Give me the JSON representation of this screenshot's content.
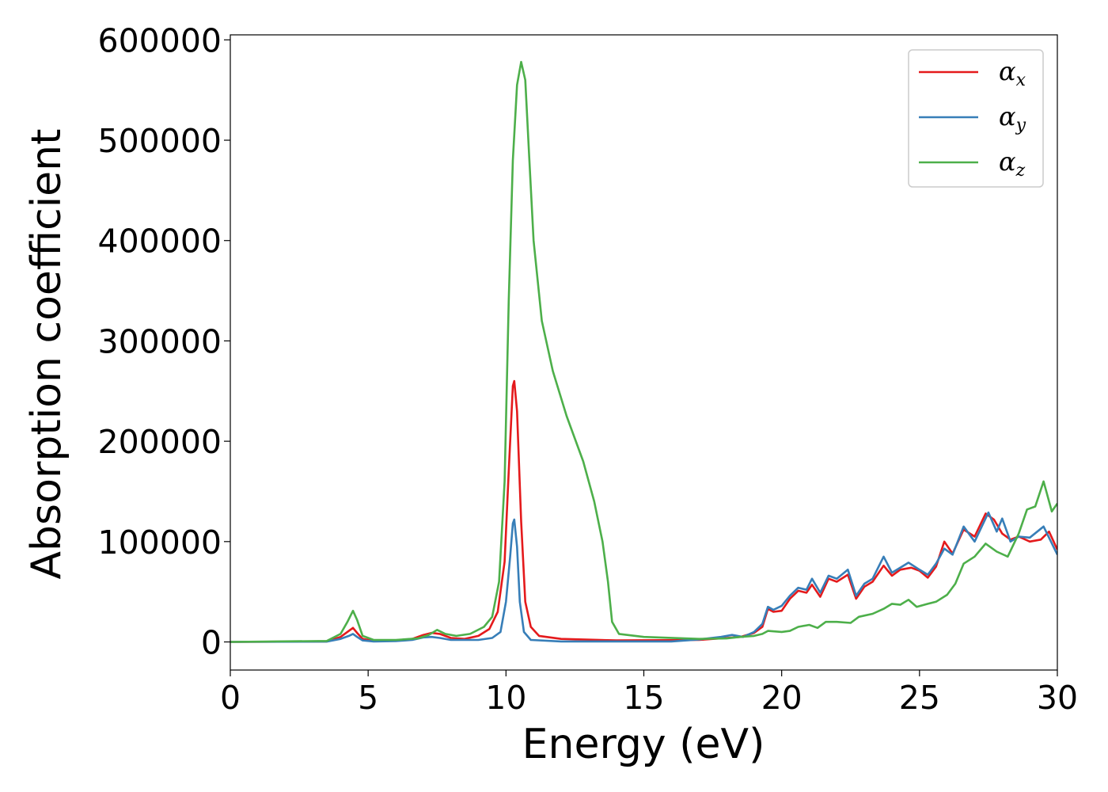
{
  "chart_data": {
    "type": "line",
    "xlabel": "Energy (eV)",
    "ylabel": "Absorption coefficient",
    "xlim": [
      0,
      30
    ],
    "ylim": [
      -28000,
      605000
    ],
    "xticks": [
      0,
      5,
      10,
      15,
      20,
      25,
      30
    ],
    "yticks": [
      0,
      100000,
      200000,
      300000,
      400000,
      500000,
      600000
    ],
    "grid": false,
    "legend_position": "top-right",
    "series": [
      {
        "name": "αx",
        "symbol": "α",
        "subscript": "x",
        "color": "#e41a1c",
        "points": [
          [
            0,
            0
          ],
          [
            3.5,
            500
          ],
          [
            4.0,
            5000
          ],
          [
            4.3,
            11000
          ],
          [
            4.45,
            14000
          ],
          [
            4.6,
            9000
          ],
          [
            4.8,
            3000
          ],
          [
            5.2,
            1000
          ],
          [
            6.0,
            1500
          ],
          [
            6.6,
            3000
          ],
          [
            7.0,
            7000
          ],
          [
            7.3,
            9000
          ],
          [
            7.6,
            8000
          ],
          [
            8.0,
            4000
          ],
          [
            8.5,
            3000
          ],
          [
            9.0,
            6000
          ],
          [
            9.4,
            13000
          ],
          [
            9.7,
            30000
          ],
          [
            9.95,
            80000
          ],
          [
            10.1,
            170000
          ],
          [
            10.25,
            255000
          ],
          [
            10.3,
            260000
          ],
          [
            10.4,
            230000
          ],
          [
            10.55,
            120000
          ],
          [
            10.7,
            40000
          ],
          [
            10.9,
            15000
          ],
          [
            11.2,
            6000
          ],
          [
            12,
            3000
          ],
          [
            14,
            1500
          ],
          [
            17,
            2000
          ],
          [
            18,
            4000
          ],
          [
            18.5,
            5000
          ],
          [
            19,
            9000
          ],
          [
            19.3,
            15000
          ],
          [
            19.5,
            33000
          ],
          [
            19.7,
            30000
          ],
          [
            20.0,
            31000
          ],
          [
            20.3,
            43000
          ],
          [
            20.6,
            51000
          ],
          [
            20.9,
            49000
          ],
          [
            21.1,
            57000
          ],
          [
            21.4,
            45000
          ],
          [
            21.7,
            63000
          ],
          [
            22.0,
            60000
          ],
          [
            22.4,
            67000
          ],
          [
            22.7,
            43000
          ],
          [
            23.0,
            55000
          ],
          [
            23.3,
            60000
          ],
          [
            23.7,
            76000
          ],
          [
            24.0,
            66000
          ],
          [
            24.3,
            72000
          ],
          [
            24.7,
            74000
          ],
          [
            25.0,
            71000
          ],
          [
            25.3,
            64000
          ],
          [
            25.6,
            75000
          ],
          [
            25.9,
            100000
          ],
          [
            26.2,
            88000
          ],
          [
            26.6,
            112000
          ],
          [
            27.0,
            105000
          ],
          [
            27.4,
            128000
          ],
          [
            27.7,
            122000
          ],
          [
            28.0,
            108000
          ],
          [
            28.3,
            102000
          ],
          [
            28.6,
            105000
          ],
          [
            29.0,
            100000
          ],
          [
            29.4,
            102000
          ],
          [
            29.7,
            110000
          ],
          [
            30.0,
            92000
          ]
        ]
      },
      {
        "name": "αy",
        "symbol": "α",
        "subscript": "y",
        "color": "#377eb8",
        "points": [
          [
            0,
            0
          ],
          [
            3.5,
            300
          ],
          [
            4.0,
            3000
          ],
          [
            4.3,
            6000
          ],
          [
            4.45,
            8000
          ],
          [
            4.6,
            5000
          ],
          [
            4.8,
            1500
          ],
          [
            5.2,
            500
          ],
          [
            6.0,
            800
          ],
          [
            6.6,
            2000
          ],
          [
            7.0,
            4500
          ],
          [
            7.3,
            5000
          ],
          [
            7.6,
            4000
          ],
          [
            8.0,
            2000
          ],
          [
            9.0,
            2000
          ],
          [
            9.5,
            4000
          ],
          [
            9.8,
            10000
          ],
          [
            10.0,
            40000
          ],
          [
            10.15,
            85000
          ],
          [
            10.25,
            118000
          ],
          [
            10.3,
            122000
          ],
          [
            10.4,
            95000
          ],
          [
            10.5,
            40000
          ],
          [
            10.65,
            10000
          ],
          [
            10.9,
            2000
          ],
          [
            12,
            500
          ],
          [
            16,
            500
          ],
          [
            17,
            2500
          ],
          [
            17.8,
            5000
          ],
          [
            18.2,
            7000
          ],
          [
            18.6,
            5000
          ],
          [
            19,
            10000
          ],
          [
            19.3,
            18000
          ],
          [
            19.5,
            35000
          ],
          [
            19.7,
            32000
          ],
          [
            20.0,
            36000
          ],
          [
            20.3,
            46000
          ],
          [
            20.6,
            54000
          ],
          [
            20.9,
            52000
          ],
          [
            21.1,
            63000
          ],
          [
            21.4,
            49000
          ],
          [
            21.7,
            66000
          ],
          [
            22.0,
            63000
          ],
          [
            22.4,
            72000
          ],
          [
            22.7,
            46000
          ],
          [
            23.0,
            58000
          ],
          [
            23.3,
            63000
          ],
          [
            23.7,
            85000
          ],
          [
            24.0,
            69000
          ],
          [
            24.3,
            74000
          ],
          [
            24.6,
            79000
          ],
          [
            25.0,
            72000
          ],
          [
            25.3,
            67000
          ],
          [
            25.6,
            78000
          ],
          [
            25.9,
            93000
          ],
          [
            26.2,
            87000
          ],
          [
            26.6,
            115000
          ],
          [
            27.0,
            100000
          ],
          [
            27.5,
            129000
          ],
          [
            27.8,
            110000
          ],
          [
            28.0,
            123000
          ],
          [
            28.3,
            100000
          ],
          [
            28.6,
            105000
          ],
          [
            29.0,
            104000
          ],
          [
            29.5,
            115000
          ],
          [
            30.0,
            87000
          ]
        ]
      },
      {
        "name": "αz",
        "symbol": "α",
        "subscript": "z",
        "color": "#4daf4a",
        "points": [
          [
            0,
            0
          ],
          [
            3.5,
            1000
          ],
          [
            4.0,
            8000
          ],
          [
            4.25,
            20000
          ],
          [
            4.45,
            31000
          ],
          [
            4.6,
            22000
          ],
          [
            4.8,
            6000
          ],
          [
            5.2,
            2000
          ],
          [
            6.0,
            2000
          ],
          [
            6.8,
            3500
          ],
          [
            7.2,
            7000
          ],
          [
            7.5,
            12000
          ],
          [
            7.8,
            8000
          ],
          [
            8.2,
            6000
          ],
          [
            8.7,
            8000
          ],
          [
            9.2,
            15000
          ],
          [
            9.5,
            25000
          ],
          [
            9.75,
            60000
          ],
          [
            9.95,
            160000
          ],
          [
            10.1,
            340000
          ],
          [
            10.25,
            480000
          ],
          [
            10.4,
            555000
          ],
          [
            10.55,
            578000
          ],
          [
            10.7,
            560000
          ],
          [
            10.85,
            480000
          ],
          [
            11.0,
            400000
          ],
          [
            11.3,
            320000
          ],
          [
            11.7,
            270000
          ],
          [
            12.2,
            225000
          ],
          [
            12.8,
            180000
          ],
          [
            13.2,
            140000
          ],
          [
            13.5,
            100000
          ],
          [
            13.7,
            60000
          ],
          [
            13.85,
            20000
          ],
          [
            14.1,
            8000
          ],
          [
            15,
            5000
          ],
          [
            17,
            3000
          ],
          [
            18,
            3500
          ],
          [
            18.5,
            5000
          ],
          [
            19,
            6000
          ],
          [
            19.3,
            8000
          ],
          [
            19.5,
            11000
          ],
          [
            20.0,
            10000
          ],
          [
            20.3,
            11000
          ],
          [
            20.6,
            15000
          ],
          [
            21.0,
            17000
          ],
          [
            21.3,
            14000
          ],
          [
            21.6,
            20000
          ],
          [
            22.0,
            20000
          ],
          [
            22.5,
            19000
          ],
          [
            22.8,
            25000
          ],
          [
            23.3,
            28000
          ],
          [
            23.7,
            33000
          ],
          [
            24.0,
            38000
          ],
          [
            24.3,
            37000
          ],
          [
            24.6,
            42000
          ],
          [
            24.9,
            35000
          ],
          [
            25.3,
            38000
          ],
          [
            25.6,
            40000
          ],
          [
            26.0,
            47000
          ],
          [
            26.3,
            58000
          ],
          [
            26.6,
            78000
          ],
          [
            27.0,
            85000
          ],
          [
            27.4,
            98000
          ],
          [
            27.8,
            90000
          ],
          [
            28.2,
            85000
          ],
          [
            28.6,
            108000
          ],
          [
            28.9,
            132000
          ],
          [
            29.2,
            135000
          ],
          [
            29.5,
            160000
          ],
          [
            29.8,
            130000
          ],
          [
            30.0,
            138000
          ]
        ]
      }
    ]
  }
}
